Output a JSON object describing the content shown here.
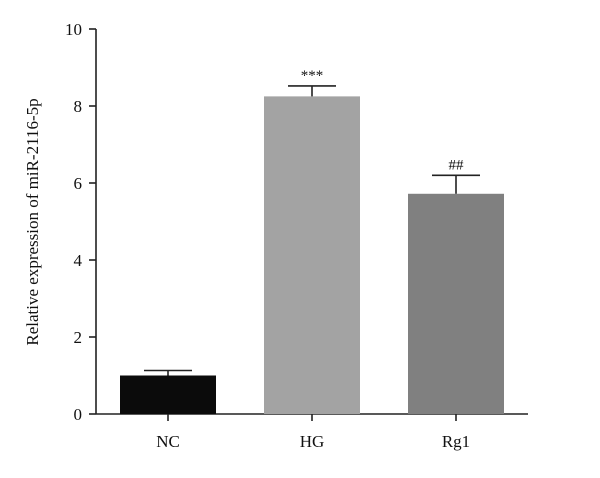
{
  "chart_data": {
    "type": "bar",
    "title": "",
    "xlabel": "",
    "ylabel": "Relative expression of miR-2116-5p",
    "ylim": [
      0,
      10
    ],
    "yticks": [
      0,
      2,
      4,
      6,
      8,
      10
    ],
    "categories": [
      "NC",
      "HG",
      "Rg1"
    ],
    "values": [
      1.0,
      8.25,
      5.72
    ],
    "errors": [
      0.13,
      0.27,
      0.48
    ],
    "annotations": [
      "",
      "***",
      "##"
    ],
    "colors": [
      "#0b0b0b",
      "#a3a3a3",
      "#808080"
    ],
    "grid": false,
    "legend": "none"
  }
}
